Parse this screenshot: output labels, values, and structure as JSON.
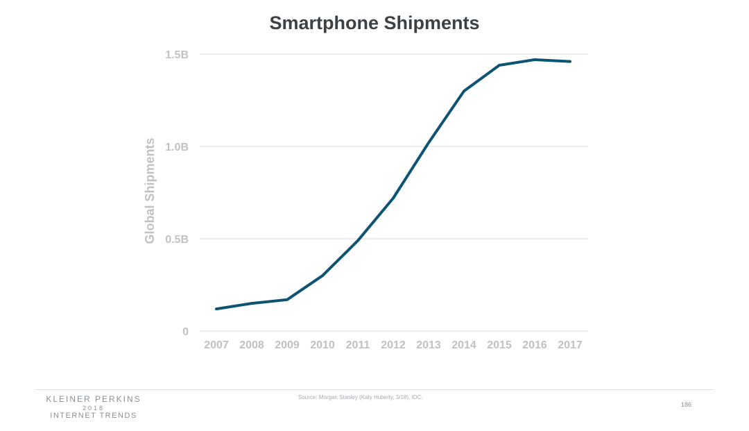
{
  "chart_data": {
    "type": "line",
    "title": "Smartphone Shipments",
    "xlabel": "",
    "ylabel": "Global Shipments",
    "categories": [
      "2007",
      "2008",
      "2009",
      "2010",
      "2011",
      "2012",
      "2013",
      "2014",
      "2015",
      "2016",
      "2017"
    ],
    "series": [
      {
        "name": "Global Shipments",
        "values": [
          0.12,
          0.15,
          0.17,
          0.3,
          0.49,
          0.72,
          1.02,
          1.3,
          1.44,
          1.47,
          1.46
        ]
      }
    ],
    "ylim": [
      0,
      1.5
    ],
    "yticks": [
      0,
      0.5,
      1.0,
      1.5
    ],
    "ytick_labels": [
      "0",
      "0.5B",
      "1.0B",
      "1.5B"
    ],
    "grid": true,
    "colors": {
      "line": "#0d5373",
      "grid": "#d9d9d9",
      "tick_text": "#bfc2c5",
      "title": "#3c4146"
    }
  },
  "footer": {
    "brand_name": "KLEINER PERKINS",
    "brand_year": "2018",
    "brand_sub": "INTERNET TRENDS",
    "source": "Source: Morgan Stanley (Katy Huberty, 3/18), IDC.",
    "page_number": "186"
  }
}
